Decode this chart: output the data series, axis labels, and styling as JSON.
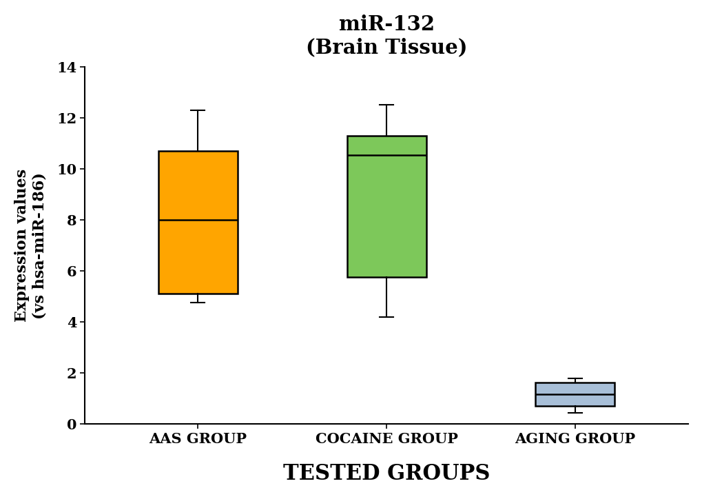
{
  "title_line1": "miR-132",
  "title_line2": "(Brain Tissue)",
  "xlabel": "TESTED GROUPS",
  "ylabel": "Expression values\n(vs hsa-miR-186)",
  "groups": [
    "AAS GROUP",
    "COCAINE GROUP",
    "AGING GROUP"
  ],
  "boxes": [
    {
      "whislo": 4.75,
      "q1": 5.1,
      "med": 8.0,
      "q3": 10.7,
      "whishi": 12.3,
      "color": "#FFA500",
      "fliers": []
    },
    {
      "whislo": 4.2,
      "q1": 5.75,
      "med": 10.55,
      "q3": 11.3,
      "whishi": 12.5,
      "color": "#7DC85A",
      "fliers": []
    },
    {
      "whislo": 0.45,
      "q1": 0.72,
      "med": 1.18,
      "q3": 1.62,
      "whishi": 1.78,
      "color": "#A8BFD8",
      "fliers": []
    }
  ],
  "ylim": [
    0,
    14
  ],
  "yticks": [
    0,
    2,
    4,
    6,
    8,
    10,
    12,
    14
  ],
  "box_width": 0.42,
  "background_color": "#ffffff",
  "title_fontsize": 21,
  "axis_label_fontsize": 16,
  "tick_label_fontsize": 15,
  "xlabel_fontsize": 22
}
